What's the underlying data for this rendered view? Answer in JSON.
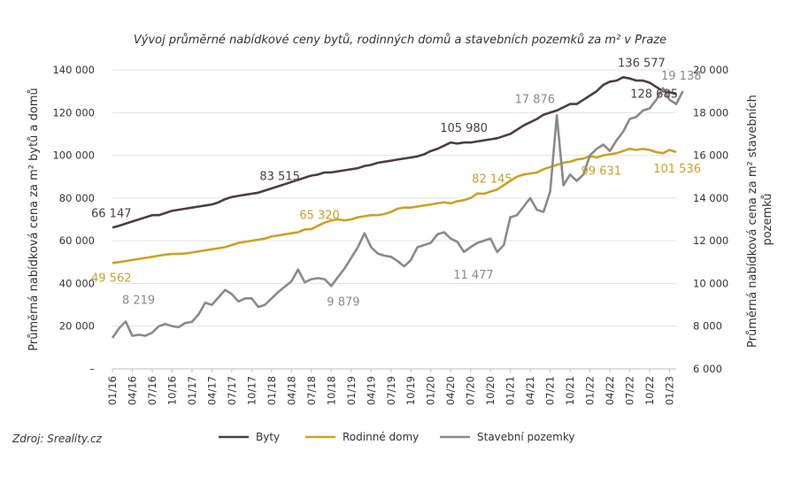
{
  "chart_data": {
    "type": "line",
    "title": "Vývoj průměrné nabídkové ceny bytů, rodinných domů a stavebních pozemků za m² v Praze",
    "source": "Zdroj: Sreality.cz",
    "ylabel_left": "Průměrná nabídková cena za m² bytů a domů",
    "ylabel_right": "Průměrná nabídková cena za m² stavebních pozemků",
    "y_left_ticks": [
      "–",
      "20 000",
      "40 000",
      "60 000",
      "80 000",
      "100 000",
      "120 000",
      "140 000"
    ],
    "y_right_ticks": [
      "6 000",
      "8 000",
      "10 000",
      "12 000",
      "14 000",
      "16 000",
      "18 000",
      "20 000"
    ],
    "ylim_left": [
      0,
      140000
    ],
    "ylim_right": [
      6000,
      20000
    ],
    "x_ticks": [
      "01/16",
      "04/16",
      "07/16",
      "10/16",
      "01/17",
      "04/17",
      "07/17",
      "10/17",
      "01/18",
      "04/18",
      "07/18",
      "10/18",
      "01/19",
      "04/19",
      "07/19",
      "10/19",
      "01/20",
      "04/20",
      "07/20",
      "10/20",
      "01/21",
      "04/21",
      "07/21",
      "10/21",
      "01/22",
      "04/22",
      "07/22",
      "10/22",
      "01/23"
    ],
    "x_start": "01/16",
    "legend": [
      "Byty",
      "Rodinné domy",
      "Stavební pozemky"
    ],
    "series": [
      {
        "name": "Byty",
        "axis": "left",
        "color": "#4e3d42",
        "values": [
          66147,
          67000,
          68000,
          69000,
          70000,
          71000,
          72000,
          72000,
          73000,
          74000,
          74500,
          75000,
          75500,
          76000,
          76500,
          77000,
          78000,
          79500,
          80500,
          81000,
          81500,
          82000,
          82500,
          83515,
          84500,
          85500,
          86500,
          87500,
          88500,
          89500,
          90500,
          91000,
          92000,
          92000,
          92500,
          93000,
          93500,
          94000,
          95000,
          95500,
          96500,
          97000,
          97500,
          98000,
          98500,
          99000,
          99500,
          100500,
          102000,
          103000,
          104500,
          105980,
          105500,
          106000,
          106000,
          106500,
          107000,
          107500,
          108000,
          109000,
          110000,
          112000,
          114000,
          115500,
          117000,
          119000,
          120000,
          121000,
          122500,
          124000,
          124000,
          126000,
          128000,
          130000,
          133000,
          134500,
          135000,
          136577,
          136000,
          135000,
          135000,
          134000,
          132000,
          130000,
          129500,
          128685
        ]
      },
      {
        "name": "Rodinné domy",
        "axis": "left",
        "color": "#c9a227",
        "values": [
          49562,
          50000,
          50500,
          51000,
          51500,
          52000,
          52500,
          53000,
          53500,
          53800,
          53800,
          54000,
          54500,
          55000,
          55500,
          56000,
          56500,
          57000,
          58000,
          59000,
          59500,
          60000,
          60500,
          61000,
          62000,
          62500,
          63000,
          63500,
          64000,
          65320,
          65500,
          67000,
          68500,
          69500,
          70000,
          69500,
          70000,
          71000,
          71500,
          72000,
          72000,
          72500,
          73500,
          75000,
          75500,
          75500,
          76000,
          76500,
          77000,
          77500,
          78000,
          77500,
          78500,
          79000,
          80000,
          82145,
          82000,
          83000,
          84000,
          86000,
          88000,
          90000,
          91000,
          91500,
          92000,
          93500,
          94500,
          95500,
          96500,
          97000,
          98000,
          98500,
          99631,
          99000,
          100000,
          100500,
          101000,
          102000,
          103000,
          102500,
          103000,
          102500,
          101500,
          101000,
          102500,
          101536
        ]
      },
      {
        "name": "Stavební pozemky",
        "axis": "right",
        "color": "#8a8a8a",
        "values": [
          7450,
          7900,
          8219,
          7550,
          7600,
          7550,
          7700,
          8000,
          8100,
          8000,
          7950,
          8150,
          8200,
          8550,
          9100,
          9000,
          9350,
          9700,
          9500,
          9150,
          9300,
          9300,
          8900,
          9000,
          9300,
          9600,
          9850,
          10100,
          10650,
          10050,
          10200,
          10250,
          10200,
          9879,
          10300,
          10700,
          11200,
          11700,
          12350,
          11700,
          11400,
          11300,
          11250,
          11050,
          10800,
          11100,
          11700,
          11800,
          11900,
          12300,
          12400,
          12100,
          11950,
          11477,
          11700,
          11900,
          12000,
          12100,
          11477,
          11800,
          13100,
          13200,
          13600,
          14000,
          13450,
          13350,
          14300,
          17876,
          14600,
          15100,
          14800,
          15100,
          16000,
          16300,
          16500,
          16200,
          16700,
          17100,
          17700,
          17800,
          18100,
          18200,
          18600,
          19138,
          18600,
          18400,
          19000
        ]
      }
    ],
    "data_labels": [
      {
        "text": "66 147",
        "color": "#4e3d42"
      },
      {
        "text": "83 515",
        "color": "#4e3d42"
      },
      {
        "text": "105 980",
        "color": "#4e3d42"
      },
      {
        "text": "136 577",
        "color": "#4e3d42"
      },
      {
        "text": "128 685",
        "color": "#4e3d42"
      },
      {
        "text": "49 562",
        "color": "#c9a227"
      },
      {
        "text": "65 320",
        "color": "#c9a227"
      },
      {
        "text": "82 145",
        "color": "#c9a227"
      },
      {
        "text": "99 631",
        "color": "#c9a227"
      },
      {
        "text": "101 536",
        "color": "#c9a227"
      },
      {
        "text": "8 219",
        "color": "#8a8a8a"
      },
      {
        "text": "9 879",
        "color": "#8a8a8a"
      },
      {
        "text": "11 477",
        "color": "#8a8a8a"
      },
      {
        "text": "17 876",
        "color": "#8a8a8a"
      },
      {
        "text": "19 138",
        "color": "#8a8a8a"
      }
    ],
    "grid": "horizontal",
    "legend_position": "bottom"
  }
}
